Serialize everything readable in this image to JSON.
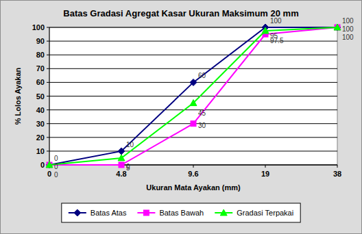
{
  "chart_data": {
    "type": "line",
    "title": "Batas Gradasi Agregat Kasar Ukuran Maksimum 20 mm",
    "x_label": "Ukuran Mata Ayakan (mm)",
    "y_label": "% Lolos Ayakan",
    "categories": [
      "0",
      "4.8",
      "9.6",
      "19",
      "38"
    ],
    "series": [
      {
        "name": "Batas Atas",
        "color": "#000080",
        "marker": "diamond",
        "values": [
          0,
          10,
          60,
          100,
          100
        ]
      },
      {
        "name": "Batas Bawah",
        "color": "#FF00FF",
        "marker": "square",
        "values": [
          0,
          0,
          30,
          95,
          100
        ]
      },
      {
        "name": "Gradasi Terpakai",
        "color": "#00FF00",
        "marker": "triangle",
        "values": [
          0,
          5,
          45,
          97.5,
          100
        ]
      }
    ],
    "ylim": [
      0,
      100
    ],
    "yticks": [
      0,
      10,
      20,
      30,
      40,
      50,
      60,
      70,
      80,
      90,
      100
    ],
    "grid": true,
    "legend": "bottom",
    "data_labels": true
  }
}
